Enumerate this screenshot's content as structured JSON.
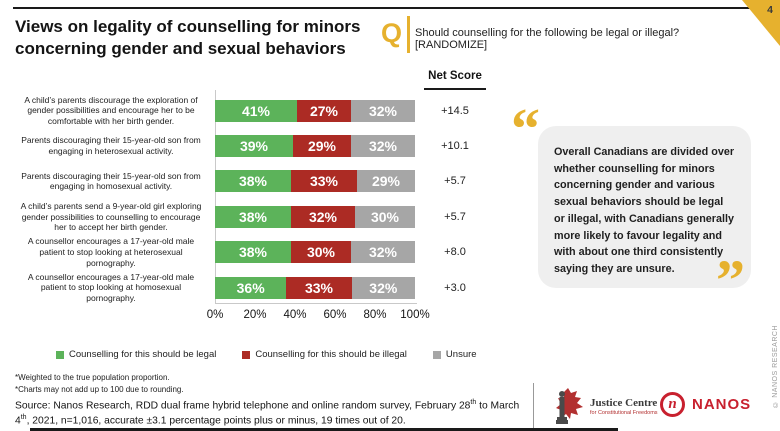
{
  "page": {
    "number": "4"
  },
  "header": {
    "title": "Views on legality of counselling for minors concerning gender and sexual behaviors",
    "q_label": "Q",
    "question": "Should counselling for the following be legal or illegal? [RANDOMIZE]"
  },
  "chart_data": {
    "type": "bar",
    "orientation": "horizontal",
    "stacked": true,
    "xlim": [
      0,
      100
    ],
    "x_ticks": [
      "0%",
      "20%",
      "40%",
      "60%",
      "80%",
      "100%"
    ],
    "net_score_header": "Net Score",
    "categories": [
      "A child’s parents discourage the exploration of gender possibilities and encourage her to be comfortable with her birth gender.",
      "Parents discouraging their 15-year-old son from engaging in heterosexual activity.",
      "Parents discouraging their 15-year-old son from engaging in homosexual activity.",
      "A child’s parents send a 9-year-old girl exploring gender possibilities to counselling to encourage her to accept her birth gender.",
      "A counsellor encourages a 17-year-old male patient to stop looking at heterosexual pornography.",
      "A counsellor encourages a 17-year-old male patient to stop looking at homosexual pornography."
    ],
    "series": [
      {
        "name": "Counselling for this should be legal",
        "color": "#5CB35A",
        "values": [
          41,
          39,
          38,
          38,
          38,
          36
        ]
      },
      {
        "name": "Counselling for this should be illegal",
        "color": "#AC2B24",
        "values": [
          27,
          29,
          33,
          32,
          30,
          33
        ]
      },
      {
        "name": "Unsure",
        "color": "#A6A6A6",
        "values": [
          32,
          32,
          29,
          30,
          32,
          32
        ]
      }
    ],
    "net_scores": [
      "+14.5",
      "+10.1",
      "+5.7",
      "+5.7",
      "+8.0",
      "+3.0"
    ]
  },
  "quote": {
    "text": "Overall Canadians are divided over whether counselling for minors concerning gender and various sexual behaviors should be legal or illegal, with Canadians generally more likely to favour legality and with about one third consistently saying they are unsure."
  },
  "footnotes": [
    "*Weighted to the true population proportion.",
    "*Charts may not add up to 100 due to rounding."
  ],
  "source": {
    "segments": [
      {
        "t": "Source: Nanos Research, RDD dual frame hybrid telephone and online random survey, February 28"
      },
      {
        "t": "th",
        "sup": true
      },
      {
        "t": " to March 4"
      },
      {
        "t": "th",
        "sup": true
      },
      {
        "t": ",  2021, n=1,016, accurate ±3.1 percentage points plus or minus, 19 times out of 20."
      }
    ]
  },
  "footer": {
    "justice_centre": {
      "line1": "Justice Centre",
      "line2": "for Constitutional Freedoms"
    },
    "nanos_initial": "n",
    "nanos_word": "NANOS",
    "copyright": "© NANOS RESEARCH"
  },
  "colors": {
    "accent_gold": "#E6B12E",
    "nanos_red": "#C8202E"
  }
}
